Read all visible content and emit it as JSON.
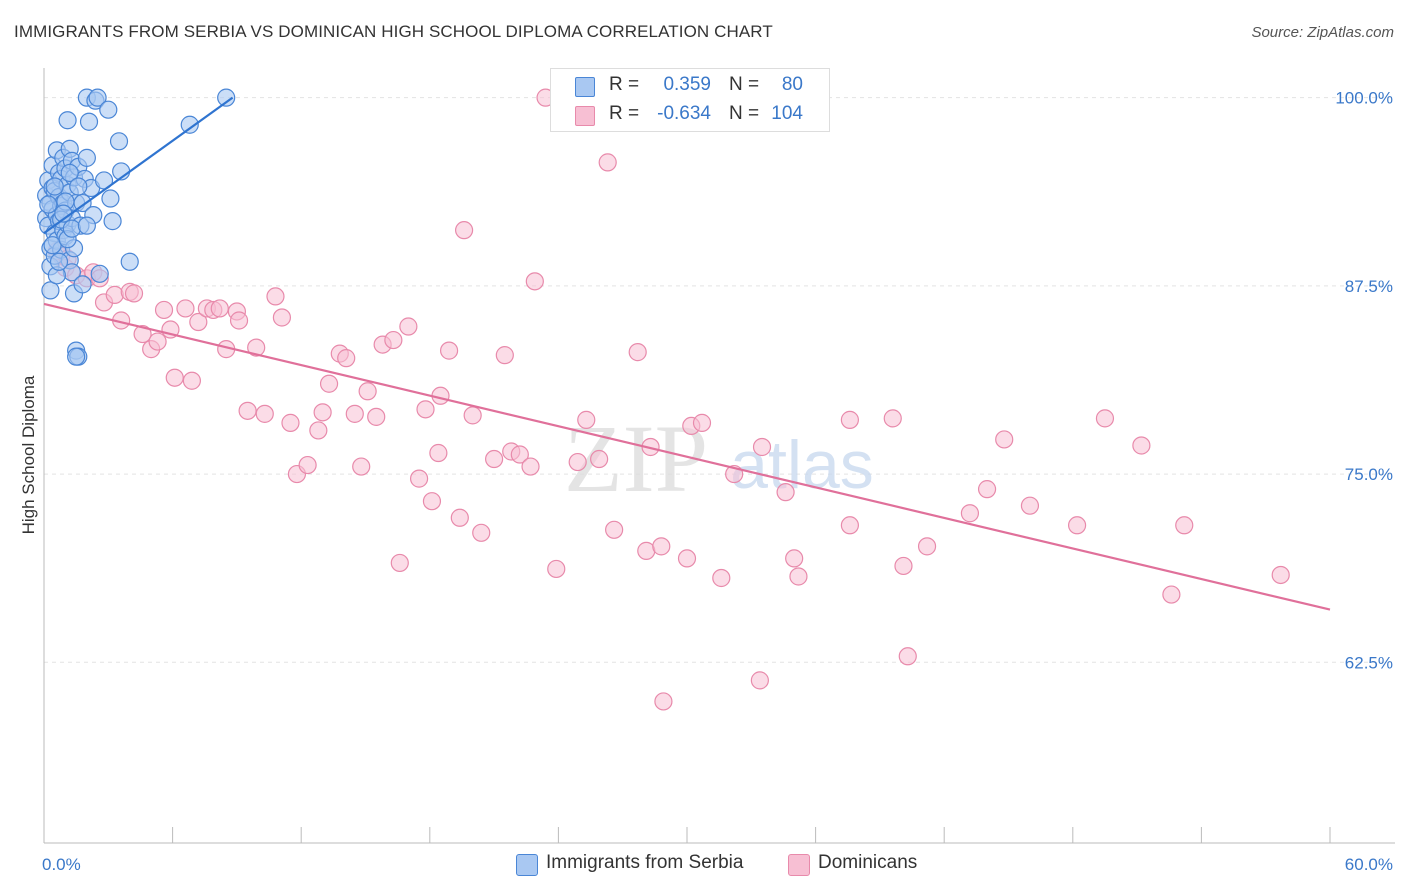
{
  "header": {
    "title": "IMMIGRANTS FROM SERBIA VS DOMINICAN HIGH SCHOOL DIPLOMA CORRELATION CHART",
    "source": "Source: ZipAtlas.com"
  },
  "watermark": {
    "zip": "ZIP",
    "atlas": "atlas"
  },
  "legend_top": {
    "rows": [
      {
        "r_label": "R =",
        "r_value": "0.359",
        "n_label": "N =",
        "n_value": "80"
      },
      {
        "r_label": "R =",
        "r_value": "-0.634",
        "n_label": "N =",
        "n_value": "104"
      }
    ]
  },
  "legend_bottom": {
    "items": [
      {
        "label": "Immigrants from Serbia"
      },
      {
        "label": "Dominicans"
      }
    ]
  },
  "colors": {
    "serbia_fill": "#a9c8f2",
    "serbia_stroke": "#4a86d6",
    "serbia_line": "#2f74d0",
    "dominican_fill": "#f7bfd3",
    "dominican_stroke": "#e88aab",
    "dominican_line": "#e0709a",
    "axis_label": "#3a78c9",
    "grid": "#e3e3e3"
  },
  "chart_data": {
    "type": "scatter",
    "title": "IMMIGRANTS FROM SERBIA VS DOMINICAN HIGH SCHOOL DIPLOMA CORRELATION CHART",
    "xlabel": "",
    "ylabel": "High School Diploma",
    "xlim": [
      0,
      60
    ],
    "ylim": [
      50.5,
      102.5
    ],
    "x_tick_labels": [
      "0.0%",
      "60.0%"
    ],
    "y_ticks": [
      100,
      87.5,
      75,
      62.5
    ],
    "y_tick_labels": [
      "100.0%",
      "87.5%",
      "75.0%",
      "62.5%"
    ],
    "grid": true,
    "legend_position": "bottom",
    "series": [
      {
        "name": "Immigrants from Serbia",
        "R": 0.359,
        "N": 80,
        "trend": {
          "x": [
            0,
            8.8
          ],
          "y": [
            91.0,
            100.0
          ]
        },
        "points": [
          [
            0.1,
            93.5
          ],
          [
            0.1,
            92.0
          ],
          [
            0.2,
            94.5
          ],
          [
            0.2,
            91.5
          ],
          [
            0.3,
            90.0
          ],
          [
            0.3,
            93.0
          ],
          [
            0.3,
            88.8
          ],
          [
            0.4,
            95.5
          ],
          [
            0.4,
            94.0
          ],
          [
            0.4,
            92.6
          ],
          [
            0.5,
            91.0
          ],
          [
            0.5,
            89.5
          ],
          [
            0.5,
            93.8
          ],
          [
            0.6,
            96.5
          ],
          [
            0.6,
            92.2
          ],
          [
            0.6,
            90.5
          ],
          [
            0.7,
            95.0
          ],
          [
            0.7,
            93.4
          ],
          [
            0.7,
            91.8
          ],
          [
            0.8,
            94.6
          ],
          [
            0.8,
            92.8
          ],
          [
            0.8,
            89.9
          ],
          [
            0.9,
            96.0
          ],
          [
            0.9,
            93.0
          ],
          [
            0.9,
            91.2
          ],
          [
            1.0,
            95.3
          ],
          [
            1.0,
            92.5
          ],
          [
            1.0,
            90.8
          ],
          [
            1.1,
            98.5
          ],
          [
            1.1,
            94.2
          ],
          [
            1.1,
            91.6
          ],
          [
            1.2,
            96.6
          ],
          [
            1.2,
            93.7
          ],
          [
            1.2,
            89.2
          ],
          [
            1.3,
            95.8
          ],
          [
            1.3,
            92.0
          ],
          [
            1.3,
            88.4
          ],
          [
            1.4,
            94.7
          ],
          [
            1.4,
            87.0
          ],
          [
            1.5,
            93.0
          ],
          [
            1.5,
            83.2
          ],
          [
            1.6,
            95.4
          ],
          [
            1.6,
            82.8
          ],
          [
            1.7,
            91.5
          ],
          [
            1.8,
            93.0
          ],
          [
            1.8,
            87.6
          ],
          [
            1.9,
            94.6
          ],
          [
            2.0,
            100.0
          ],
          [
            2.0,
            96.0
          ],
          [
            2.1,
            98.4
          ],
          [
            2.2,
            94.0
          ],
          [
            2.3,
            92.2
          ],
          [
            2.4,
            99.8
          ],
          [
            2.5,
            100.0
          ],
          [
            2.6,
            88.3
          ],
          [
            2.8,
            94.5
          ],
          [
            3.0,
            99.2
          ],
          [
            3.1,
            93.3
          ],
          [
            3.2,
            91.8
          ],
          [
            3.5,
            97.1
          ],
          [
            3.6,
            95.1
          ],
          [
            4.0,
            89.1
          ],
          [
            6.8,
            98.2
          ],
          [
            8.5,
            100.0
          ],
          [
            0.3,
            87.2
          ],
          [
            0.4,
            90.2
          ],
          [
            0.6,
            88.2
          ],
          [
            0.8,
            91.9
          ],
          [
            1.0,
            93.1
          ],
          [
            1.2,
            95.0
          ],
          [
            1.4,
            90.0
          ],
          [
            0.2,
            92.9
          ],
          [
            0.5,
            94.1
          ],
          [
            0.9,
            92.3
          ],
          [
            1.1,
            90.6
          ],
          [
            1.3,
            91.3
          ],
          [
            0.7,
            89.1
          ],
          [
            1.5,
            82.8
          ],
          [
            1.6,
            94.1
          ],
          [
            2.0,
            91.5
          ]
        ]
      },
      {
        "name": "Dominicans",
        "R": -0.634,
        "N": 104,
        "trend": {
          "x": [
            0,
            60
          ],
          "y": [
            86.3,
            66.0
          ]
        },
        "points": [
          [
            0.6,
            89.8
          ],
          [
            0.8,
            89.5
          ],
          [
            1.0,
            88.7
          ],
          [
            1.1,
            89.3
          ],
          [
            1.5,
            88.2
          ],
          [
            2.0,
            88.0
          ],
          [
            2.3,
            88.4
          ],
          [
            2.6,
            88.0
          ],
          [
            2.8,
            86.4
          ],
          [
            3.3,
            86.9
          ],
          [
            3.6,
            85.2
          ],
          [
            4.0,
            87.1
          ],
          [
            4.2,
            87.0
          ],
          [
            4.6,
            84.3
          ],
          [
            5.0,
            83.3
          ],
          [
            5.3,
            83.8
          ],
          [
            5.6,
            85.9
          ],
          [
            5.9,
            84.6
          ],
          [
            6.1,
            81.4
          ],
          [
            6.6,
            86.0
          ],
          [
            6.9,
            81.2
          ],
          [
            7.2,
            85.1
          ],
          [
            7.6,
            86.0
          ],
          [
            7.9,
            85.9
          ],
          [
            8.2,
            86.0
          ],
          [
            8.5,
            83.3
          ],
          [
            9.0,
            85.8
          ],
          [
            9.1,
            85.2
          ],
          [
            9.5,
            79.2
          ],
          [
            9.9,
            83.4
          ],
          [
            10.3,
            79.0
          ],
          [
            10.8,
            86.8
          ],
          [
            11.1,
            85.4
          ],
          [
            11.5,
            78.4
          ],
          [
            11.8,
            75.0
          ],
          [
            12.3,
            75.6
          ],
          [
            12.8,
            77.9
          ],
          [
            13.0,
            79.1
          ],
          [
            13.3,
            81.0
          ],
          [
            13.8,
            83.0
          ],
          [
            14.1,
            82.7
          ],
          [
            14.5,
            79.0
          ],
          [
            14.8,
            75.5
          ],
          [
            15.1,
            80.5
          ],
          [
            15.5,
            78.8
          ],
          [
            15.8,
            83.6
          ],
          [
            16.3,
            83.9
          ],
          [
            16.6,
            69.1
          ],
          [
            17.0,
            84.8
          ],
          [
            17.5,
            74.7
          ],
          [
            17.8,
            79.3
          ],
          [
            18.1,
            73.2
          ],
          [
            18.4,
            76.4
          ],
          [
            18.5,
            80.2
          ],
          [
            18.9,
            83.2
          ],
          [
            19.4,
            72.1
          ],
          [
            19.6,
            91.2
          ],
          [
            20.0,
            78.9
          ],
          [
            20.4,
            71.1
          ],
          [
            21.0,
            76.0
          ],
          [
            21.5,
            82.9
          ],
          [
            21.8,
            76.5
          ],
          [
            22.2,
            76.3
          ],
          [
            22.7,
            75.5
          ],
          [
            22.9,
            87.8
          ],
          [
            23.4,
            100.0
          ],
          [
            23.9,
            68.7
          ],
          [
            24.6,
            100.0
          ],
          [
            24.9,
            75.8
          ],
          [
            25.3,
            78.6
          ],
          [
            25.9,
            76.0
          ],
          [
            26.3,
            95.7
          ],
          [
            26.6,
            71.3
          ],
          [
            27.7,
            83.1
          ],
          [
            28.1,
            69.9
          ],
          [
            28.3,
            76.8
          ],
          [
            28.8,
            70.2
          ],
          [
            28.9,
            59.9
          ],
          [
            30.0,
            69.4
          ],
          [
            30.2,
            78.2
          ],
          [
            30.7,
            78.4
          ],
          [
            31.6,
            68.1
          ],
          [
            32.2,
            75.0
          ],
          [
            33.4,
            61.3
          ],
          [
            33.5,
            76.8
          ],
          [
            34.6,
            73.8
          ],
          [
            35.0,
            69.4
          ],
          [
            35.2,
            68.2
          ],
          [
            37.6,
            78.6
          ],
          [
            37.6,
            71.6
          ],
          [
            39.6,
            78.7
          ],
          [
            40.1,
            68.9
          ],
          [
            40.3,
            62.9
          ],
          [
            41.2,
            70.2
          ],
          [
            43.2,
            72.4
          ],
          [
            44.0,
            74.0
          ],
          [
            44.8,
            77.3
          ],
          [
            46.0,
            72.9
          ],
          [
            48.2,
            71.6
          ],
          [
            49.5,
            78.7
          ],
          [
            51.2,
            76.9
          ],
          [
            52.6,
            67.0
          ],
          [
            53.2,
            71.6
          ],
          [
            57.7,
            68.3
          ]
        ]
      }
    ]
  }
}
